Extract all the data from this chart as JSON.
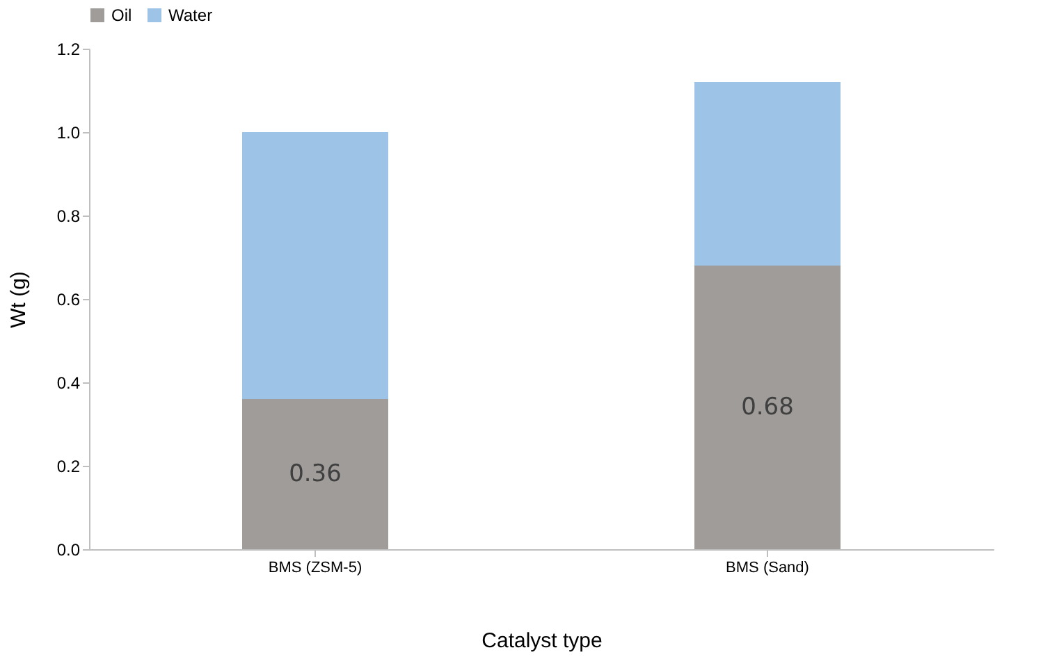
{
  "chart_data": {
    "type": "bar",
    "stacked": true,
    "xlabel": "Catalyst type",
    "ylabel": "Wt (g)",
    "categories": [
      "BMS (ZSM-5)",
      "BMS (Sand)"
    ],
    "series": [
      {
        "name": "Oil",
        "color": "#a09c9a",
        "values": [
          0.36,
          0.68
        ],
        "value_labels": [
          "0.36",
          "0.68"
        ]
      },
      {
        "name": "Water",
        "color": "#9dc3e6",
        "values": [
          0.64,
          0.44
        ]
      }
    ],
    "ylim": [
      0,
      1.2
    ],
    "yticks": [
      {
        "value": 0,
        "label": "0.0"
      },
      {
        "value": 0.2,
        "label": "0.2"
      },
      {
        "value": 0.4,
        "label": "0.4"
      },
      {
        "value": 0.6,
        "label": "0.6"
      },
      {
        "value": 0.8,
        "label": "0.8"
      },
      {
        "value": 1.0,
        "label": "1.0"
      },
      {
        "value": 1.2,
        "label": "1.2"
      }
    ],
    "grid": false,
    "legend": "top"
  }
}
